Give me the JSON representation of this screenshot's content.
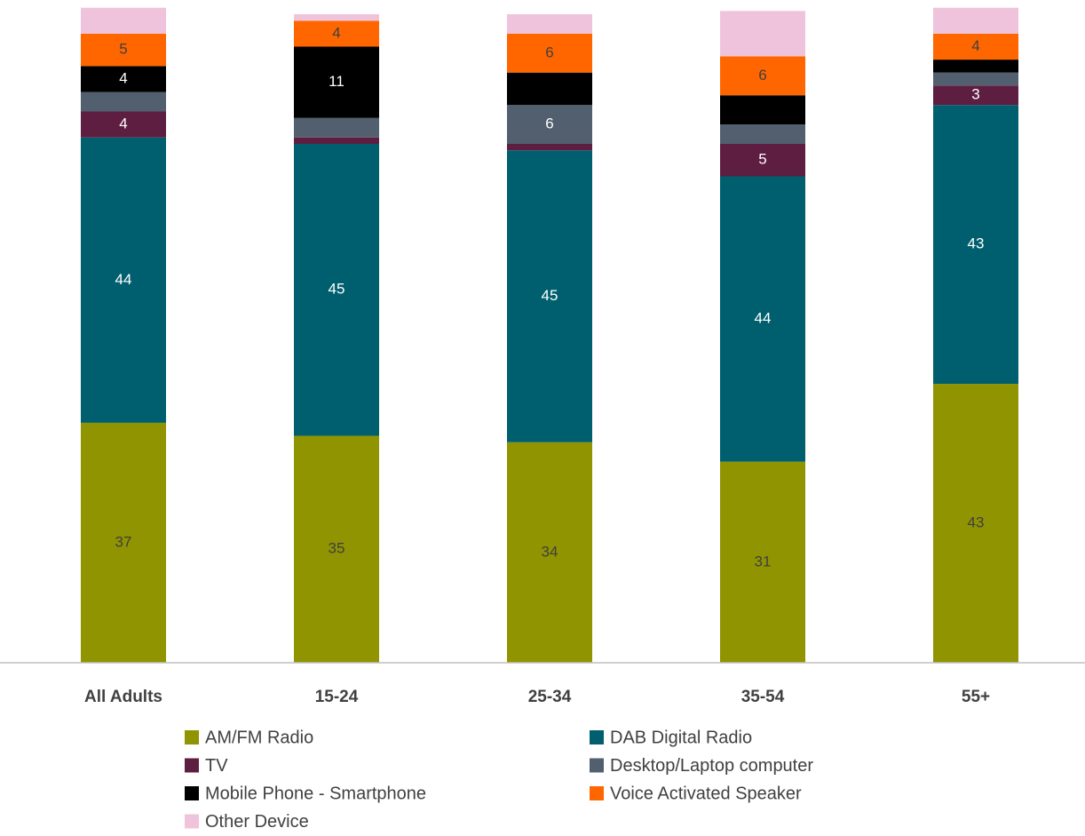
{
  "chart_data": {
    "type": "bar",
    "stacked": true,
    "legend": "bottom",
    "categories": [
      "All Adults",
      "15-24",
      "25-34",
      "35-54",
      "55+"
    ],
    "ylim": [
      0,
      100
    ],
    "series": [
      {
        "name": "AM/FM Radio",
        "color": "#8f9400",
        "label_color": "#404040",
        "values": [
          37,
          35,
          34,
          31,
          43
        ],
        "value_labels": [
          "37",
          "35",
          "34",
          "31",
          "43"
        ]
      },
      {
        "name": "DAB Digital Radio",
        "color": "#005f6e",
        "label_color": "#ffffff",
        "values": [
          44,
          45,
          45,
          44,
          43
        ],
        "value_labels": [
          "44",
          "45",
          "45",
          "44",
          "43"
        ]
      },
      {
        "name": "TV",
        "color": "#5e1e42",
        "label_color": "#ffffff",
        "values": [
          4,
          1,
          1,
          5,
          3
        ],
        "value_labels": [
          "4",
          null,
          null,
          "5",
          "3"
        ]
      },
      {
        "name": "Desktop/Laptop computer",
        "color": "#525f6e",
        "label_color": "#ffffff",
        "values": [
          3,
          3,
          6,
          3,
          2
        ],
        "value_labels": [
          null,
          null,
          "6",
          null,
          null
        ]
      },
      {
        "name": "Mobile Phone - Smartphone",
        "color": "#000000",
        "label_color": "#ffffff",
        "values": [
          4,
          11,
          5,
          4.5,
          2
        ],
        "value_labels": [
          "4",
          "11",
          null,
          null,
          null
        ]
      },
      {
        "name": "Voice Activated Speaker",
        "color": "#ff6600",
        "label_color": "#404040",
        "values": [
          5,
          4,
          6,
          6,
          4
        ],
        "value_labels": [
          "5",
          "4",
          "6",
          "6",
          "4"
        ]
      },
      {
        "name": "Other Device",
        "color": "#f0c3dc",
        "label_color": "#404040",
        "values": [
          4,
          1,
          3,
          7,
          4
        ],
        "value_labels": [
          null,
          null,
          null,
          null,
          null
        ]
      }
    ]
  }
}
